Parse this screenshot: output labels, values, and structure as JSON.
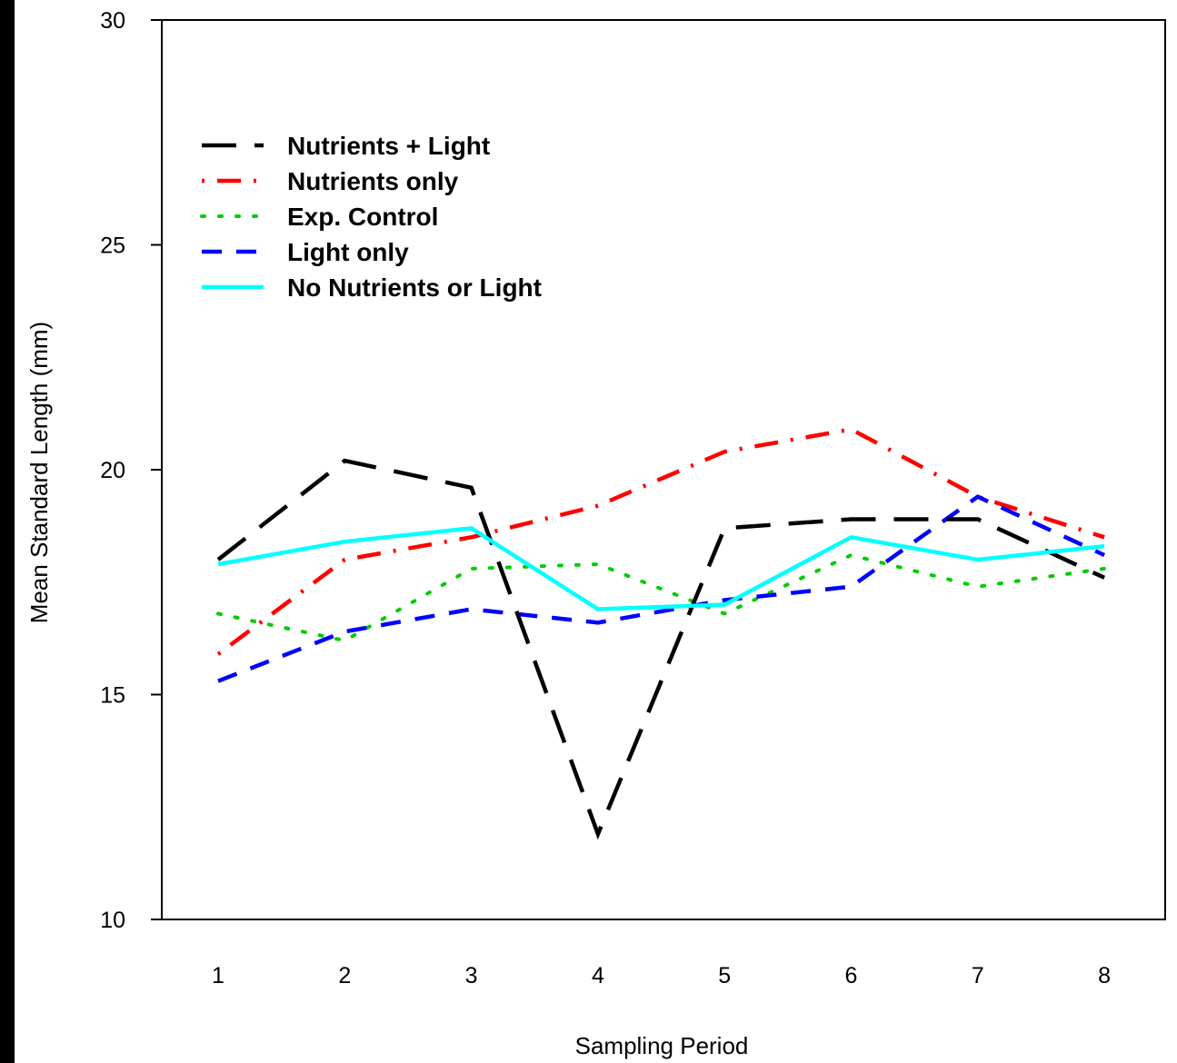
{
  "chart_data": {
    "type": "line",
    "xlabel": "Sampling Period",
    "ylabel": "Mean Standard Length (mm)",
    "x": [
      1,
      2,
      3,
      4,
      5,
      6,
      7,
      8
    ],
    "x_tick_labels": [
      "1",
      "2",
      "3",
      "4",
      "5",
      "6",
      "7",
      "8"
    ],
    "ylim": [
      10,
      30
    ],
    "y_ticks": [
      10,
      15,
      20,
      25,
      30
    ],
    "y_tick_labels": [
      "10",
      "15",
      "20",
      "25",
      "30"
    ],
    "grid": false,
    "legend_position": "top-left",
    "series": [
      {
        "name": "Nutrients + Light",
        "color": "#000000",
        "style": "longdash",
        "values": [
          18.0,
          20.2,
          19.6,
          11.9,
          18.7,
          18.9,
          18.9,
          17.6
        ]
      },
      {
        "name": "Nutrients only",
        "color": "#ff0000",
        "style": "dotdash",
        "values": [
          15.9,
          18.0,
          18.5,
          19.2,
          20.4,
          20.9,
          19.4,
          18.5
        ]
      },
      {
        "name": "Exp. Control",
        "color": "#00cc00",
        "style": "dotted",
        "values": [
          16.8,
          16.2,
          17.8,
          17.9,
          16.8,
          18.1,
          17.4,
          17.8
        ]
      },
      {
        "name": "Light only",
        "color": "#0000ff",
        "style": "dashed",
        "values": [
          15.3,
          16.4,
          16.9,
          16.6,
          17.1,
          17.4,
          19.4,
          18.1
        ]
      },
      {
        "name": "No Nutrients or Light",
        "color": "#00ffff",
        "style": "solid",
        "values": [
          17.9,
          18.4,
          18.7,
          16.9,
          17.0,
          18.5,
          18.0,
          18.3
        ]
      }
    ]
  }
}
